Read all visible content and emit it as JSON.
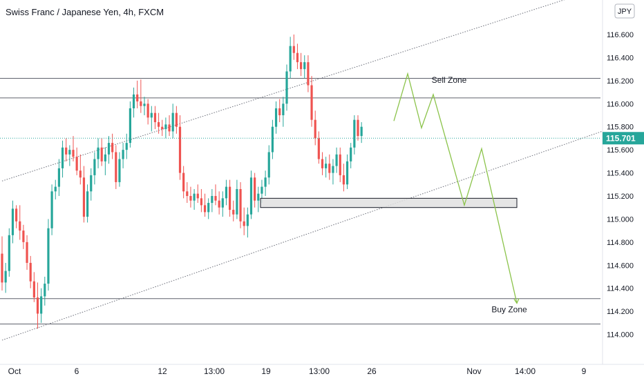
{
  "header": {
    "title": "Swiss Franc / Japanese Yen, 4h, FXCM",
    "currency_button": "JPY"
  },
  "chart_data": {
    "type": "candlestick",
    "symbol": "CHFJPY",
    "timeframe": "4h",
    "y_axis": {
      "ticks": [
        "116.600",
        "116.400",
        "116.200",
        "116.000",
        "115.800",
        "115.600",
        "115.400",
        "115.200",
        "115.000",
        "114.800",
        "114.600",
        "114.400",
        "114.200",
        "114.000"
      ],
      "ylim": [
        113.8,
        116.8
      ]
    },
    "x_axis": {
      "ticks": [
        "Oct",
        "6",
        "12",
        "13:00",
        "19",
        "13:00",
        "26",
        "Nov",
        "14:00",
        "9"
      ]
    },
    "last_price": "115.701",
    "colors": {
      "up": "#26a69a",
      "down": "#ef5350",
      "projection": "#8bc34a",
      "price_line": "#26a69a"
    },
    "horizontal_levels": [
      116.22,
      116.05,
      114.31,
      114.09
    ],
    "annotations": [
      {
        "text": "Sell Zone",
        "price": 116.17
      },
      {
        "text": "Buy Zone",
        "price": 114.18
      }
    ],
    "box": {
      "price_top": 115.18,
      "price_bottom": 115.1
    },
    "channel": {
      "upper": [
        {
          "bar": 0,
          "price": 115.33
        },
        {
          "bar": 176,
          "price": 117.08
        }
      ],
      "lower": [
        {
          "bar": 0,
          "price": 113.95
        },
        {
          "bar": 176,
          "price": 115.84
        }
      ]
    },
    "projection": [
      115.85,
      116.26,
      115.79,
      116.08,
      115.12,
      115.61,
      114.27
    ],
    "candles_ohlc": [
      [
        114.7,
        114.85,
        114.38,
        114.45
      ],
      [
        114.45,
        114.62,
        114.36,
        114.55
      ],
      [
        114.55,
        114.92,
        114.5,
        114.86
      ],
      [
        114.86,
        115.16,
        114.79,
        115.09
      ],
      [
        115.09,
        115.12,
        114.92,
        114.98
      ],
      [
        114.98,
        115.12,
        114.82,
        114.9
      ],
      [
        114.9,
        114.95,
        114.74,
        114.8
      ],
      [
        114.8,
        114.86,
        114.56,
        114.62
      ],
      [
        114.62,
        114.68,
        114.4,
        114.46
      ],
      [
        114.46,
        114.54,
        114.28,
        114.32
      ],
      [
        114.32,
        114.45,
        114.05,
        114.18
      ],
      [
        114.18,
        114.4,
        114.1,
        114.33
      ],
      [
        114.33,
        114.5,
        114.25,
        114.44
      ],
      [
        114.44,
        115.0,
        114.38,
        114.92
      ],
      [
        114.92,
        115.3,
        114.86,
        115.24
      ],
      [
        115.24,
        115.34,
        115.17,
        115.28
      ],
      [
        115.28,
        115.52,
        115.2,
        115.44
      ],
      [
        115.44,
        115.68,
        115.36,
        115.62
      ],
      [
        115.62,
        115.7,
        115.5,
        115.56
      ],
      [
        115.56,
        115.64,
        115.46,
        115.6
      ],
      [
        115.6,
        115.72,
        115.5,
        115.54
      ],
      [
        115.54,
        115.62,
        115.38,
        115.42
      ],
      [
        115.42,
        115.56,
        115.3,
        115.36
      ],
      [
        115.36,
        115.46,
        114.97,
        115.02
      ],
      [
        115.02,
        115.3,
        114.97,
        115.24
      ],
      [
        115.24,
        115.44,
        115.16,
        115.38
      ],
      [
        115.38,
        115.58,
        115.3,
        115.52
      ],
      [
        115.52,
        115.7,
        115.44,
        115.62
      ],
      [
        115.62,
        115.7,
        115.46,
        115.5
      ],
      [
        115.5,
        115.62,
        115.38,
        115.56
      ],
      [
        115.56,
        115.72,
        115.48,
        115.66
      ],
      [
        115.66,
        115.74,
        115.52,
        115.58
      ],
      [
        115.58,
        115.64,
        115.26,
        115.32
      ],
      [
        115.32,
        115.58,
        115.28,
        115.52
      ],
      [
        115.52,
        115.66,
        115.44,
        115.6
      ],
      [
        115.6,
        115.74,
        115.52,
        115.66
      ],
      [
        115.66,
        116.02,
        115.62,
        115.96
      ],
      [
        115.96,
        116.14,
        115.88,
        116.08
      ],
      [
        116.08,
        116.2,
        115.96,
        116.02
      ],
      [
        116.02,
        116.21,
        115.92,
        115.98
      ],
      [
        115.98,
        116.06,
        115.9,
        116.0
      ],
      [
        116.0,
        116.04,
        115.82,
        115.88
      ],
      [
        115.88,
        115.98,
        115.76,
        115.92
      ],
      [
        115.92,
        115.98,
        115.78,
        115.84
      ],
      [
        115.84,
        115.92,
        115.74,
        115.8
      ],
      [
        115.8,
        115.86,
        115.72,
        115.78
      ],
      [
        115.78,
        115.88,
        115.7,
        115.82
      ],
      [
        115.82,
        115.9,
        115.72,
        115.76
      ],
      [
        115.76,
        116.0,
        115.7,
        115.92
      ],
      [
        115.92,
        115.98,
        115.74,
        115.8
      ],
      [
        115.8,
        115.9,
        115.34,
        115.4
      ],
      [
        115.4,
        115.46,
        115.18,
        115.24
      ],
      [
        115.24,
        115.32,
        115.14,
        115.2
      ],
      [
        115.2,
        115.28,
        115.1,
        115.16
      ],
      [
        115.16,
        115.26,
        115.08,
        115.22
      ],
      [
        115.22,
        115.3,
        115.14,
        115.18
      ],
      [
        115.18,
        115.26,
        115.06,
        115.12
      ],
      [
        115.12,
        115.22,
        115.02,
        115.06
      ],
      [
        115.06,
        115.18,
        115.0,
        115.14
      ],
      [
        115.14,
        115.26,
        115.06,
        115.2
      ],
      [
        115.2,
        115.3,
        115.12,
        115.16
      ],
      [
        115.16,
        115.24,
        115.04,
        115.1
      ],
      [
        115.1,
        115.24,
        115.02,
        115.18
      ],
      [
        115.18,
        115.34,
        115.12,
        115.28
      ],
      [
        115.28,
        115.34,
        115.02,
        115.08
      ],
      [
        115.08,
        115.16,
        114.98,
        115.04
      ],
      [
        115.04,
        115.34,
        115.0,
        115.26
      ],
      [
        115.26,
        115.32,
        114.92,
        114.98
      ],
      [
        114.98,
        115.1,
        114.86,
        114.94
      ],
      [
        114.94,
        115.1,
        114.84,
        115.04
      ],
      [
        115.04,
        115.42,
        115.0,
        115.36
      ],
      [
        115.36,
        115.4,
        115.1,
        115.16
      ],
      [
        115.16,
        115.28,
        115.06,
        115.22
      ],
      [
        115.22,
        115.34,
        115.14,
        115.28
      ],
      [
        115.28,
        115.42,
        115.2,
        115.36
      ],
      [
        115.36,
        115.64,
        115.3,
        115.58
      ],
      [
        115.58,
        115.86,
        115.52,
        115.8
      ],
      [
        115.8,
        116.02,
        115.74,
        115.96
      ],
      [
        115.96,
        116.04,
        115.84,
        115.9
      ],
      [
        115.9,
        116.06,
        115.8,
        116.0
      ],
      [
        116.0,
        116.34,
        115.94,
        116.28
      ],
      [
        116.28,
        116.58,
        116.22,
        116.5
      ],
      [
        116.5,
        116.6,
        116.38,
        116.44
      ],
      [
        116.44,
        116.52,
        116.3,
        116.36
      ],
      [
        116.36,
        116.44,
        116.24,
        116.3
      ],
      [
        116.3,
        116.42,
        116.22,
        116.36
      ],
      [
        116.36,
        116.42,
        116.1,
        116.16
      ],
      [
        116.16,
        116.24,
        115.8,
        115.86
      ],
      [
        115.86,
        115.94,
        115.64,
        115.7
      ],
      [
        115.7,
        115.76,
        115.48,
        115.52
      ],
      [
        115.52,
        115.58,
        115.38,
        115.44
      ],
      [
        115.44,
        115.54,
        115.36,
        115.48
      ],
      [
        115.48,
        115.56,
        115.34,
        115.4
      ],
      [
        115.4,
        115.52,
        115.3,
        115.46
      ],
      [
        115.46,
        115.62,
        115.4,
        115.56
      ],
      [
        115.56,
        115.62,
        115.32,
        115.38
      ],
      [
        115.38,
        115.48,
        115.24,
        115.3
      ],
      [
        115.3,
        115.56,
        115.26,
        115.5
      ],
      [
        115.5,
        115.66,
        115.44,
        115.62
      ],
      [
        115.62,
        115.9,
        115.56,
        115.86
      ],
      [
        115.86,
        115.9,
        115.68,
        115.72
      ],
      [
        115.72,
        115.84,
        115.66,
        115.8
      ]
    ]
  }
}
